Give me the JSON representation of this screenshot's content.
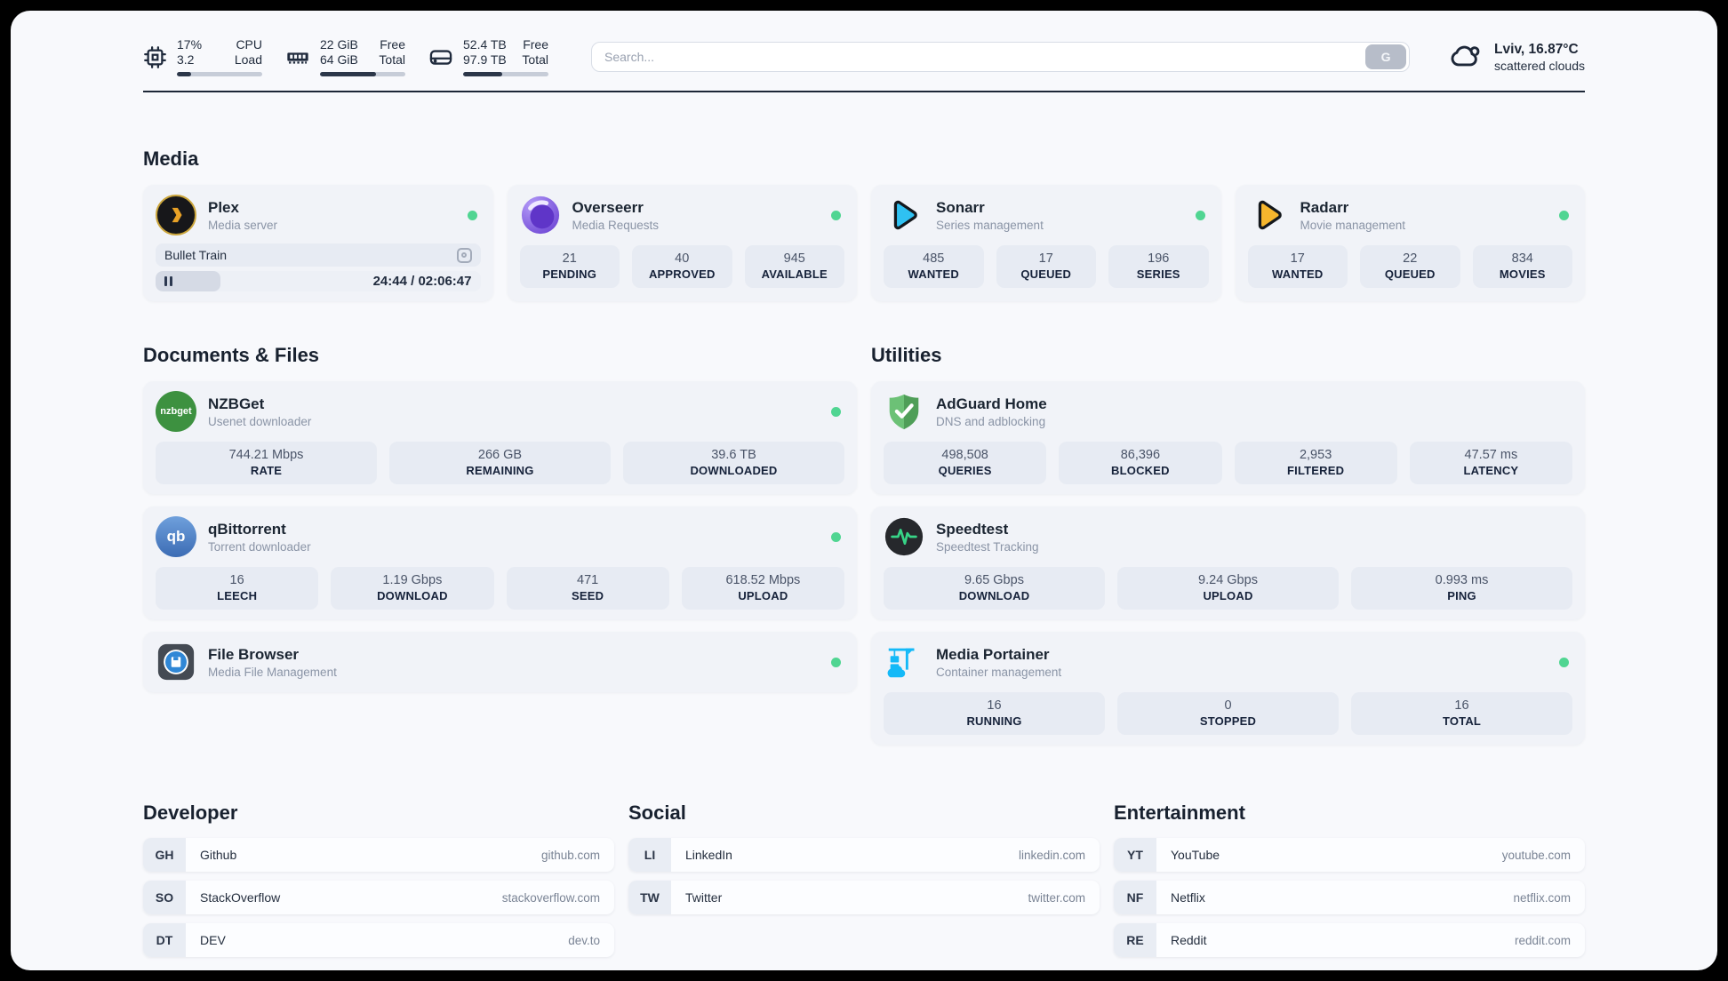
{
  "topbar": {
    "stats": [
      {
        "icon": "cpu-icon",
        "value_top": "17%",
        "value_bottom": "3.2",
        "label_top": "CPU",
        "label_bottom": "Load",
        "progress_pct": 17
      },
      {
        "icon": "ram-icon",
        "value_top": "22 GiB",
        "value_bottom": "64 GiB",
        "label_top": "Free",
        "label_bottom": "Total",
        "progress_pct": 66
      },
      {
        "icon": "disk-icon",
        "value_top": "52.4 TB",
        "value_bottom": "97.9 TB",
        "label_top": "Free",
        "label_bottom": "Total",
        "progress_pct": 46
      }
    ],
    "search": {
      "placeholder": "Search...",
      "button_label": "G"
    },
    "weather": {
      "icon": "cloud-icon",
      "location_temp": "Lviv, 16.87°C",
      "condition": "scattered clouds"
    }
  },
  "media": {
    "title": "Media",
    "apps": [
      {
        "name": "Plex",
        "subtitle": "Media server",
        "icon": "plex-icon",
        "online": true,
        "player": {
          "title": "Bullet Train",
          "time": "24:44 / 02:06:47",
          "progress_pct": 20
        }
      },
      {
        "name": "Overseerr",
        "subtitle": "Media Requests",
        "icon": "overseerr-icon",
        "online": true,
        "stats": [
          {
            "value": "21",
            "label": "PENDING"
          },
          {
            "value": "40",
            "label": "APPROVED"
          },
          {
            "value": "945",
            "label": "AVAILABLE"
          }
        ]
      },
      {
        "name": "Sonarr",
        "subtitle": "Series management",
        "icon": "sonarr-icon",
        "online": true,
        "stats": [
          {
            "value": "485",
            "label": "WANTED"
          },
          {
            "value": "17",
            "label": "QUEUED"
          },
          {
            "value": "196",
            "label": "SERIES"
          }
        ]
      },
      {
        "name": "Radarr",
        "subtitle": "Movie management",
        "icon": "radarr-icon",
        "online": true,
        "stats": [
          {
            "value": "17",
            "label": "WANTED"
          },
          {
            "value": "22",
            "label": "QUEUED"
          },
          {
            "value": "834",
            "label": "MOVIES"
          }
        ]
      }
    ]
  },
  "documents": {
    "title": "Documents & Files",
    "apps": [
      {
        "name": "NZBGet",
        "subtitle": "Usenet downloader",
        "icon": "nzbget-icon",
        "icon_label": "nzbget",
        "online": true,
        "stats": [
          {
            "value": "744.21 Mbps",
            "label": "RATE"
          },
          {
            "value": "266 GB",
            "label": "REMAINING"
          },
          {
            "value": "39.6 TB",
            "label": "DOWNLOADED"
          }
        ]
      },
      {
        "name": "qBittorrent",
        "subtitle": "Torrent downloader",
        "icon": "qbittorrent-icon",
        "icon_label": "qb",
        "online": true,
        "stats": [
          {
            "value": "16",
            "label": "LEECH"
          },
          {
            "value": "1.19 Gbps",
            "label": "DOWNLOAD"
          },
          {
            "value": "471",
            "label": "SEED"
          },
          {
            "value": "618.52 Mbps",
            "label": "UPLOAD"
          }
        ]
      },
      {
        "name": "File Browser",
        "subtitle": "Media File Management",
        "icon": "filebrowser-icon",
        "online": true
      }
    ]
  },
  "utilities": {
    "title": "Utilities",
    "apps": [
      {
        "name": "AdGuard Home",
        "subtitle": "DNS and adblocking",
        "icon": "adguard-icon",
        "online": false,
        "stats": [
          {
            "value": "498,508",
            "label": "QUERIES"
          },
          {
            "value": "86,396",
            "label": "BLOCKED"
          },
          {
            "value": "2,953",
            "label": "FILTERED"
          },
          {
            "value": "47.57 ms",
            "label": "LATENCY"
          }
        ]
      },
      {
        "name": "Speedtest",
        "subtitle": "Speedtest Tracking",
        "icon": "speedtest-icon",
        "online": false,
        "stats": [
          {
            "value": "9.65 Gbps",
            "label": "DOWNLOAD"
          },
          {
            "value": "9.24 Gbps",
            "label": "UPLOAD"
          },
          {
            "value": "0.993 ms",
            "label": "PING"
          }
        ]
      },
      {
        "name": "Media Portainer",
        "subtitle": "Container management",
        "icon": "portainer-icon",
        "online": true,
        "stats": [
          {
            "value": "16",
            "label": "RUNNING"
          },
          {
            "value": "0",
            "label": "STOPPED"
          },
          {
            "value": "16",
            "label": "TOTAL"
          }
        ]
      }
    ]
  },
  "bookmarks": [
    {
      "title": "Developer",
      "links": [
        {
          "abbr": "GH",
          "name": "Github",
          "domain": "github.com"
        },
        {
          "abbr": "SO",
          "name": "StackOverflow",
          "domain": "stackoverflow.com"
        },
        {
          "abbr": "DT",
          "name": "DEV",
          "domain": "dev.to"
        }
      ]
    },
    {
      "title": "Social",
      "links": [
        {
          "abbr": "LI",
          "name": "LinkedIn",
          "domain": "linkedin.com"
        },
        {
          "abbr": "TW",
          "name": "Twitter",
          "domain": "twitter.com"
        }
      ]
    },
    {
      "title": "Entertainment",
      "links": [
        {
          "abbr": "YT",
          "name": "YouTube",
          "domain": "youtube.com"
        },
        {
          "abbr": "NF",
          "name": "Netflix",
          "domain": "netflix.com"
        },
        {
          "abbr": "RE",
          "name": "Reddit",
          "domain": "reddit.com"
        }
      ]
    }
  ],
  "colors": {
    "status_online": "#50d592",
    "plex_gold": "#e8a126",
    "sonarr_blue": "#2fc1f2",
    "radarr_amber": "#f6b62d",
    "nzbget_green": "#3d9140",
    "qbittorrent_blue": "#3c6cb4",
    "adguard_green": "#68bd71",
    "speedtest_green": "#37d487",
    "portainer_blue": "#14b9f8",
    "divider_dark": "#1d2737"
  }
}
